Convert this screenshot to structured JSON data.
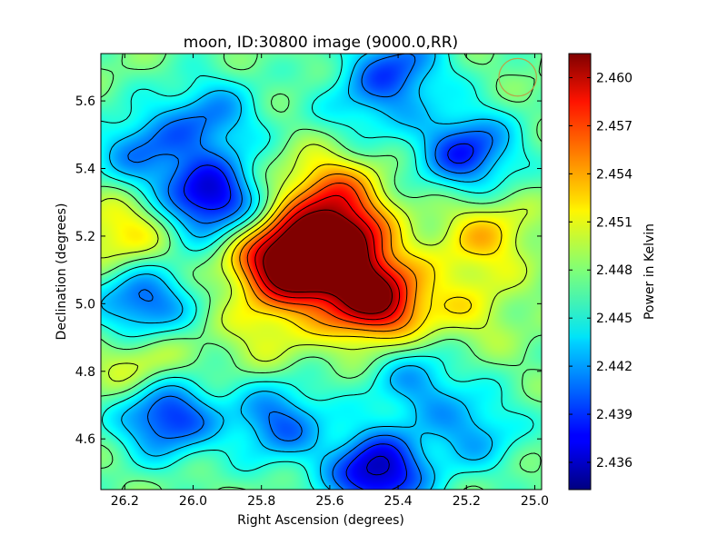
{
  "chart_data": {
    "type": "heatmap",
    "title": "moon, ID:30800 image (9000.0,RR)",
    "xlabel": "Right Ascension (degrees)",
    "ylabel": "Declination (degrees)",
    "colorbar_label": "Power in Kelvin",
    "xlim": [
      26.27,
      24.98
    ],
    "ylim": [
      4.45,
      5.74
    ],
    "x_ticks": [
      26.2,
      26.0,
      25.8,
      25.6,
      25.4,
      25.2,
      25.0
    ],
    "x_tick_labels": [
      "26.2",
      "26.0",
      "25.8",
      "25.6",
      "25.4",
      "25.2",
      "25.0"
    ],
    "y_ticks": [
      4.6,
      4.8,
      5.0,
      5.2,
      5.4,
      5.6
    ],
    "y_tick_labels": [
      "4.6",
      "4.8",
      "5.0",
      "5.2",
      "5.4",
      "5.6"
    ],
    "colorbar_range": [
      2.4343,
      2.4615
    ],
    "colorbar_ticks": [
      2.436,
      2.439,
      2.442,
      2.445,
      2.448,
      2.451,
      2.454,
      2.457,
      2.46
    ],
    "colorbar_tick_labels": [
      "2.436",
      "2.439",
      "2.442",
      "2.445",
      "2.448",
      "2.451",
      "2.454",
      "2.457",
      "2.460"
    ],
    "colormap": "jet",
    "contours": true,
    "background_level": 2.4475,
    "features": [
      {
        "ra": 25.65,
        "dec": 5.12,
        "level": 2.4585
      },
      {
        "ra": 25.47,
        "dec": 5.01,
        "level": 2.4612
      },
      {
        "ra": 25.56,
        "dec": 5.19,
        "level": 2.4575
      },
      {
        "ra": 25.76,
        "dec": 5.13,
        "level": 2.457
      },
      {
        "ra": 25.6,
        "dec": 5.33,
        "level": 2.4545
      },
      {
        "ra": 26.2,
        "dec": 5.21,
        "level": 2.4525
      },
      {
        "ra": 25.15,
        "dec": 5.2,
        "level": 2.4525
      },
      {
        "ra": 26.15,
        "dec": 4.82,
        "level": 2.452
      },
      {
        "ra": 25.2,
        "dec": 4.98,
        "level": 2.4505
      },
      {
        "ra": 25.95,
        "dec": 5.31,
        "level": 2.4365
      },
      {
        "ra": 26.08,
        "dec": 4.67,
        "level": 2.438
      },
      {
        "ra": 25.46,
        "dec": 4.5,
        "level": 2.4355
      },
      {
        "ra": 25.2,
        "dec": 5.45,
        "level": 2.4385
      },
      {
        "ra": 26.15,
        "dec": 5.0,
        "level": 2.4395
      },
      {
        "ra": 25.95,
        "dec": 5.55,
        "level": 2.4415
      },
      {
        "ra": 25.75,
        "dec": 4.65,
        "level": 2.4405
      },
      {
        "ra": 25.4,
        "dec": 5.7,
        "level": 2.4405
      },
      {
        "ra": 25.18,
        "dec": 4.62,
        "level": 2.4425
      },
      {
        "ra": 26.15,
        "dec": 5.45,
        "level": 2.4415
      },
      {
        "ra": 25.35,
        "dec": 4.77,
        "level": 2.4425
      },
      {
        "ra": 25.5,
        "dec": 5.58,
        "level": 2.444
      },
      {
        "ra": 25.78,
        "dec": 4.92,
        "level": 2.4505
      }
    ],
    "beam_marker": {
      "ra": 25.05,
      "dec": 5.67,
      "radius_deg": 0.055,
      "color": "#b8a24a"
    }
  }
}
